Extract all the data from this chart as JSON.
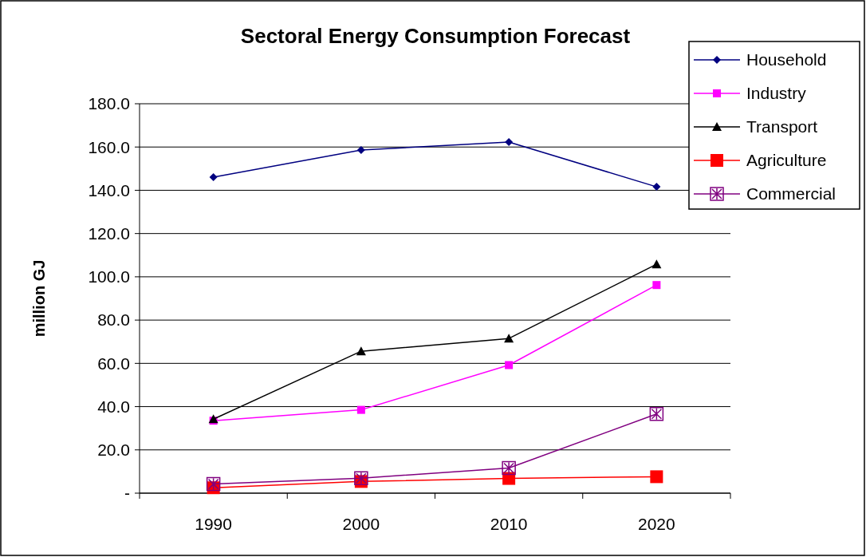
{
  "chart_data": {
    "type": "line",
    "title": "Sectoral Energy Consumption Forecast",
    "ylabel": "million GJ",
    "categories": [
      "1990",
      "2000",
      "2010",
      "2020"
    ],
    "series": [
      {
        "name": "Household",
        "color": "#000080",
        "marker": "diamond",
        "values": [
          146.1,
          158.6,
          162.3,
          141.6
        ]
      },
      {
        "name": "Industry",
        "color": "#ff00ff",
        "marker": "square",
        "values": [
          33.5,
          38.5,
          59.2,
          96.2
        ]
      },
      {
        "name": "Transport",
        "color": "#000000",
        "marker": "triangle",
        "values": [
          34.2,
          65.6,
          71.5,
          105.8
        ]
      },
      {
        "name": "Agriculture",
        "color": "#ff0000",
        "marker": "square",
        "values": [
          2.5,
          5.4,
          6.8,
          7.6
        ]
      },
      {
        "name": "Commercial",
        "color": "#800080",
        "marker": "cross",
        "values": [
          4.2,
          6.9,
          11.6,
          36.6
        ]
      }
    ],
    "ylim": [
      0,
      180
    ],
    "yticks": [
      {
        "value": 0,
        "label": "-"
      },
      {
        "value": 20,
        "label": "20.0"
      },
      {
        "value": 40,
        "label": "40.0"
      },
      {
        "value": 60,
        "label": "60.0"
      },
      {
        "value": 80,
        "label": "80.0"
      },
      {
        "value": 100,
        "label": "100.0"
      },
      {
        "value": 120,
        "label": "120.0"
      },
      {
        "value": 140,
        "label": "140.0"
      },
      {
        "value": 160,
        "label": "160.0"
      },
      {
        "value": 180,
        "label": "180.0"
      }
    ],
    "grid": "y",
    "legend": "top right"
  }
}
